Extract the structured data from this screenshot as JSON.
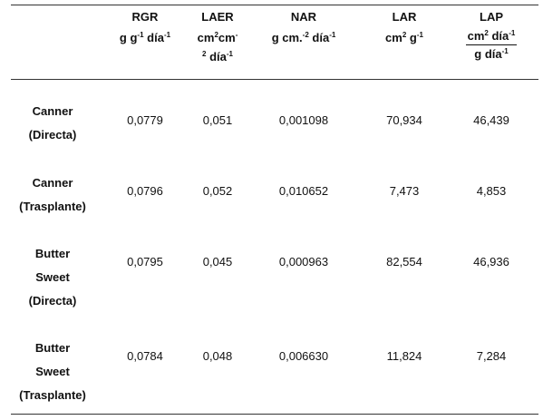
{
  "table": {
    "headers": {
      "rgr": {
        "name": "RGR",
        "unit_a": "g g",
        "unit_a_sup": "-1",
        "unit_b": " día",
        "unit_b_sup": "-1"
      },
      "laer": {
        "name": "LAER",
        "l1": "cm",
        "l1_sup": "2",
        "l2": "cm",
        "l2_sup": "-",
        "l3_sup": "2",
        "l3": " día",
        "l3_sup2": "-1"
      },
      "nar": {
        "name": "NAR",
        "unit_a": "g cm.",
        "unit_a_sup": "-2",
        "unit_b": " día",
        "unit_b_sup": "-1"
      },
      "lar": {
        "name": "LAR",
        "unit_a": "cm",
        "unit_a_sup": "2",
        "unit_b": " g",
        "unit_b_sup": "-1"
      },
      "lap": {
        "name": "LAP",
        "num_a": "cm",
        "num_a_sup": "2",
        "num_b": " día",
        "num_b_sup": "-1",
        "den_a": "g día",
        "den_a_sup": "-1"
      }
    },
    "rows": [
      {
        "label": [
          "Canner",
          "(Directa)"
        ],
        "rgr": "0,0779",
        "laer": "0,051",
        "nar": "0,001098",
        "lar": "70,934",
        "lap": "46,439"
      },
      {
        "label": [
          "Canner",
          "(Trasplante)"
        ],
        "rgr": "0,0796",
        "laer": "0,052",
        "nar": "0,010652",
        "lar": "7,473",
        "lap": "4,853"
      },
      {
        "label": [
          "Butter",
          "Sweet",
          "(Directa)"
        ],
        "rgr": "0,0795",
        "laer": "0,045",
        "nar": "0,000963",
        "lar": "82,554",
        "lap": "46,936"
      },
      {
        "label": [
          "Butter",
          "Sweet",
          "(Trasplante)"
        ],
        "rgr": "0,0784",
        "laer": "0,048",
        "nar": "0,006630",
        "lar": "11,824",
        "lap": "7,284"
      }
    ]
  }
}
